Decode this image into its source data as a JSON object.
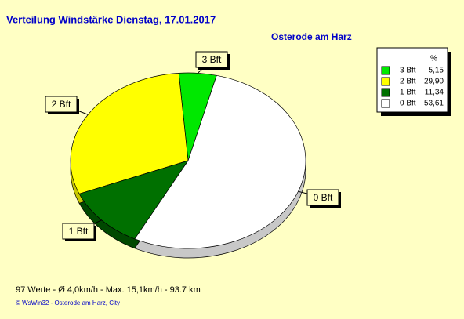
{
  "chart_data": {
    "type": "pie",
    "title": "Verteilung Windstärke  Dienstag, 17.01.2017",
    "subtitle": "Osterode am Harz",
    "legend_title": "%",
    "categories": [
      "3 Bft",
      "2 Bft",
      "1 Bft",
      "0 Bft"
    ],
    "values": [
      5.15,
      29.9,
      11.34,
      53.61
    ],
    "value_labels": [
      "5,15",
      "29,90",
      "11,34",
      "53,61"
    ],
    "colors": [
      "#00e800",
      "#ffff00",
      "#007000",
      "#ffffff"
    ],
    "footer": "97 Werte  -  Ø 4,0km/h  -  Max. 15,1km/h  -   93.7 km",
    "copyright": "© WsWin32  -  Osterode am Harz, City"
  }
}
